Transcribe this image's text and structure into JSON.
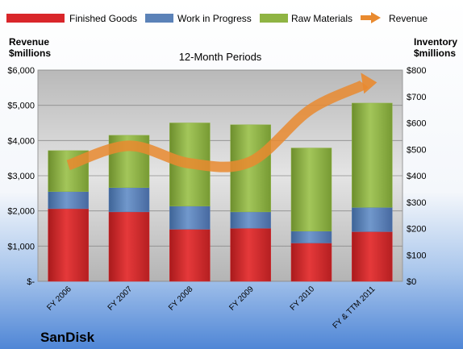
{
  "chart_data": {
    "type": "bar",
    "title": "12-Month Periods",
    "company": "SanDisk",
    "left_axis_label": [
      "Revenue",
      "$millions"
    ],
    "right_axis_label": [
      "Inventory",
      "$millions"
    ],
    "categories": [
      "FY 2006",
      "FY 2007",
      "FY 2008",
      "FY 2009",
      "FY 2010",
      "FY & TTM 2011"
    ],
    "stacked": true,
    "series": [
      {
        "name": "Finished Goods",
        "axis": "right",
        "color": "#d9262a",
        "values": [
          275,
          263,
          197,
          201,
          145,
          188
        ]
      },
      {
        "name": "Work in Progress",
        "axis": "right",
        "color": "#5b82b8",
        "values": [
          65,
          92,
          88,
          62,
          45,
          92
        ]
      },
      {
        "name": "Raw Materials",
        "axis": "right",
        "color": "#8fb443",
        "values": [
          155,
          198,
          315,
          330,
          315,
          395
        ]
      }
    ],
    "line_series": {
      "name": "Revenue",
      "axis": "left",
      "color": "#e98a2f",
      "values": [
        3300,
        3850,
        3350,
        3400,
        4900,
        5650
      ]
    },
    "left_axis": {
      "range": [
        0,
        6000
      ],
      "ticks": [
        "$-",
        "$1,000",
        "$2,000",
        "$3,000",
        "$4,000",
        "$5,000",
        "$6,000"
      ]
    },
    "right_axis": {
      "range": [
        0,
        800
      ],
      "ticks": [
        "$0",
        "$100",
        "$200",
        "$300",
        "$400",
        "$500",
        "$600",
        "$700",
        "$800"
      ]
    },
    "legend_position": "top",
    "grid": true
  }
}
